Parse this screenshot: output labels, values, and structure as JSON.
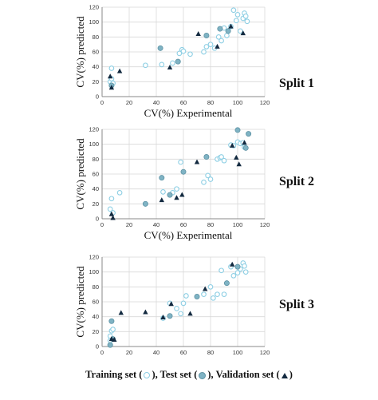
{
  "chart_data": [
    {
      "type": "scatter",
      "split_label": "Split 1",
      "xlabel": "CV(%) Experimental",
      "ylabel": "CV(%) predicted",
      "xlim": [
        0,
        120
      ],
      "ylim": [
        0,
        120
      ],
      "xticks": [
        0,
        20,
        40,
        60,
        80,
        100,
        120
      ],
      "yticks": [
        0,
        20,
        40,
        60,
        80,
        100,
        120
      ],
      "grid": true,
      "series": [
        {
          "name": "Training set",
          "marker": "open-circle",
          "color": "#8ecfe4",
          "x": [
            6,
            7,
            8,
            7,
            32,
            44,
            52,
            57,
            59,
            60,
            65,
            75,
            77,
            80,
            83,
            86,
            88,
            90,
            92,
            95,
            97,
            99,
            100,
            102,
            104,
            105,
            106,
            107
          ],
          "y": [
            20,
            38,
            18,
            24,
            42,
            43,
            45,
            58,
            63,
            61,
            57,
            60,
            67,
            70,
            65,
            80,
            75,
            92,
            82,
            94,
            116,
            102,
            110,
            88,
            105,
            112,
            108,
            101
          ]
        },
        {
          "name": "Test set",
          "marker": "filled-circle",
          "color": "#7fb3c4",
          "x": [
            7,
            43,
            56,
            77,
            87,
            93
          ],
          "y": [
            15,
            65,
            47,
            82,
            91,
            88
          ]
        },
        {
          "name": "Validation set",
          "marker": "triangle",
          "color": "#132a40",
          "x": [
            6,
            7,
            13,
            50,
            71,
            85,
            95,
            104
          ],
          "y": [
            27,
            12,
            34,
            39,
            84,
            67,
            94,
            85
          ]
        }
      ]
    },
    {
      "type": "scatter",
      "split_label": "Split 2",
      "xlabel": "CV(%) Experimental",
      "ylabel": "CV(%) predicted",
      "xlim": [
        0,
        120
      ],
      "ylim": [
        0,
        120
      ],
      "xticks": [
        0,
        20,
        40,
        60,
        80,
        100,
        120
      ],
      "yticks": [
        0,
        20,
        40,
        60,
        80,
        100,
        120
      ],
      "grid": true,
      "series": [
        {
          "name": "Training set",
          "marker": "open-circle",
          "color": "#8ecfe4",
          "x": [
            6,
            7,
            8,
            13,
            32,
            45,
            52,
            55,
            58,
            75,
            78,
            80,
            85,
            87,
            88,
            90,
            95,
            97,
            100,
            102,
            104,
            105
          ],
          "y": [
            13,
            27,
            8,
            35,
            20,
            36,
            35,
            40,
            76,
            49,
            58,
            53,
            80,
            82,
            83,
            78,
            99,
            98,
            103,
            101,
            102,
            96
          ]
        },
        {
          "name": "Test set",
          "marker": "filled-circle",
          "color": "#7fb3c4",
          "x": [
            32,
            44,
            50,
            60,
            77,
            100,
            106,
            108
          ],
          "y": [
            20,
            55,
            32,
            63,
            83,
            119,
            95,
            114
          ]
        },
        {
          "name": "Validation set",
          "marker": "triangle",
          "color": "#132a40",
          "x": [
            7,
            8,
            44,
            55,
            59,
            70,
            96,
            99,
            101,
            105
          ],
          "y": [
            6,
            1,
            25,
            28,
            32,
            76,
            98,
            82,
            73,
            102
          ]
        }
      ]
    },
    {
      "type": "scatter",
      "split_label": "Split 3",
      "xlabel": "",
      "ylabel": "CV(%) predicted",
      "xlim": [
        0,
        120
      ],
      "ylim": [
        0,
        120
      ],
      "xticks": [
        0,
        20,
        40,
        60,
        80,
        100,
        120
      ],
      "yticks": [
        0,
        20,
        40,
        60,
        80,
        100,
        120
      ],
      "grid": true,
      "series": [
        {
          "name": "Training set",
          "marker": "open-circle",
          "color": "#8ecfe4",
          "x": [
            6,
            6,
            7,
            8,
            45,
            50,
            55,
            58,
            60,
            62,
            75,
            80,
            82,
            85,
            88,
            90,
            95,
            97,
            100,
            102,
            104,
            105,
            106
          ],
          "y": [
            8,
            14,
            21,
            23,
            38,
            58,
            51,
            44,
            58,
            68,
            70,
            80,
            65,
            70,
            102,
            70,
            107,
            95,
            99,
            104,
            112,
            108,
            100
          ]
        },
        {
          "name": "Test set",
          "marker": "filled-circle",
          "color": "#7fb3c4",
          "x": [
            6,
            7,
            8,
            50,
            70,
            92,
            100
          ],
          "y": [
            2,
            34,
            10,
            41,
            67,
            85,
            107
          ]
        },
        {
          "name": "Validation set",
          "marker": "triangle",
          "color": "#132a40",
          "x": [
            7,
            9,
            14,
            32,
            45,
            51,
            65,
            76,
            96
          ],
          "y": [
            10,
            9,
            45,
            46,
            39,
            57,
            44,
            77,
            110
          ]
        }
      ]
    }
  ],
  "legend": {
    "training_label": "Training set (",
    "test_label": "), Test set (",
    "validation_label": "), Validation set (",
    "closing": ")"
  }
}
